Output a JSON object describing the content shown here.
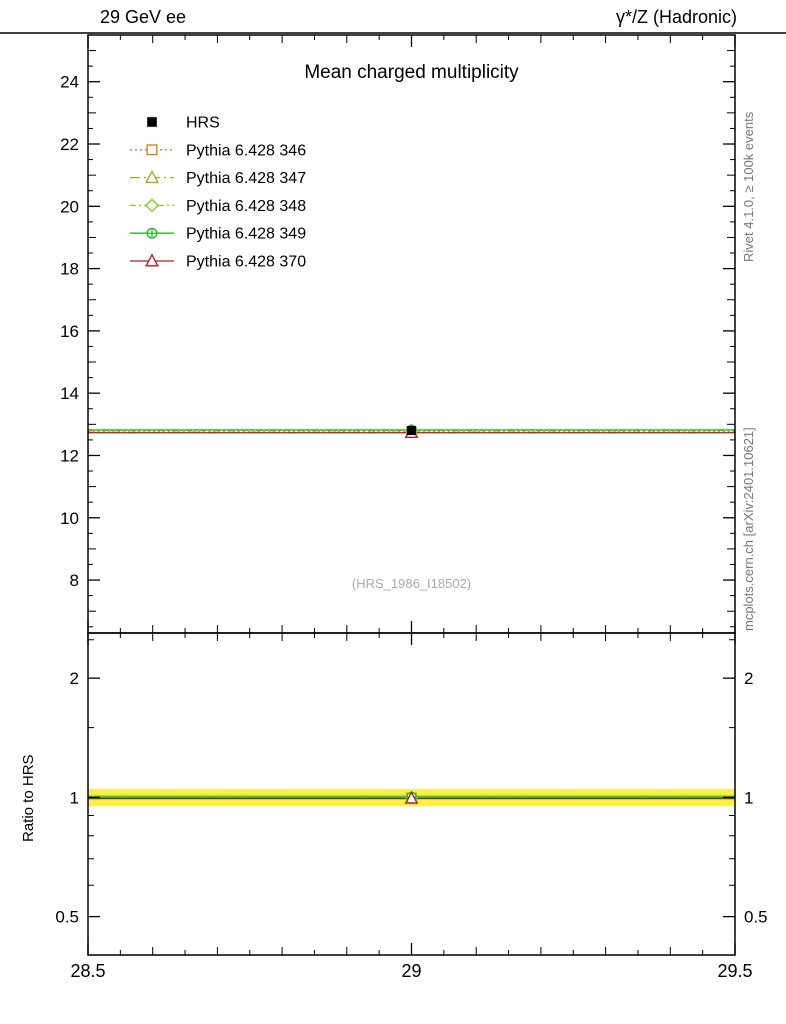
{
  "header": {
    "left": "29 GeV ee",
    "right": "γ*/Z (Hadronic)"
  },
  "side_notes": {
    "top_right": "Rivet 4.1.0, ≥ 100k events",
    "bottom_right": "mcplots.cern.ch [arXiv:2401.10621]"
  },
  "watermark": "(HRS_1986_I18502)",
  "ratio_axis_label": "Ratio to HRS",
  "chart_data": {
    "type": "line",
    "title": "Mean charged multiplicity",
    "xlim": [
      28.5,
      29.5
    ],
    "x_major_ticks": [
      28.5,
      29,
      29.5
    ],
    "x_minor_step": 0.05,
    "main_panel": {
      "ylim": [
        6.3,
        25.5
      ],
      "y_major_ticks": [
        8,
        10,
        12,
        14,
        16,
        18,
        20,
        22,
        24
      ],
      "y_minor_step": 0.5
    },
    "ratio_panel": {
      "scale": "log",
      "ylim": [
        0.4,
        2.6
      ],
      "y_major_ticks": [
        0.5,
        1,
        2
      ],
      "y_minor_ticks": [
        0.6,
        0.7,
        0.8,
        0.9,
        1.5,
        2.5
      ],
      "band": {
        "outer_frac": 0.05,
        "inner_frac": 0.015,
        "outer_color": "#ffee44",
        "inner_color": "#aadd44"
      }
    },
    "x_value": 29,
    "series": [
      {
        "label": "HRS",
        "type": "data",
        "color": "#000000",
        "marker": "filled-square",
        "y": 12.8,
        "y_err": 0.2
      },
      {
        "label": "Pythia 6.428 346",
        "type": "mc",
        "color": "#cc8822",
        "marker": "open-square",
        "dash": "2 3",
        "y": 12.76,
        "ratio": 0.997
      },
      {
        "label": "Pythia 6.428 347",
        "type": "mc",
        "color": "#aaaa22",
        "marker": "open-triangle",
        "dash": "10 4 2 4",
        "y": 12.74,
        "ratio": 0.995
      },
      {
        "label": "Pythia 6.428 348",
        "type": "mc",
        "color": "#88cc22",
        "marker": "open-diamond",
        "dash": "6 3 2 3",
        "y": 12.8,
        "ratio": 1.0
      },
      {
        "label": "Pythia 6.428 349",
        "type": "mc",
        "color": "#22bb22",
        "marker": "circle-plus",
        "dash": "",
        "y": 12.82,
        "ratio": 1.002
      },
      {
        "label": "Pythia 6.428 370",
        "type": "mc",
        "color": "#aa2222",
        "marker": "open-triangle",
        "dash": "",
        "y": 12.73,
        "ratio": 0.994
      }
    ]
  }
}
